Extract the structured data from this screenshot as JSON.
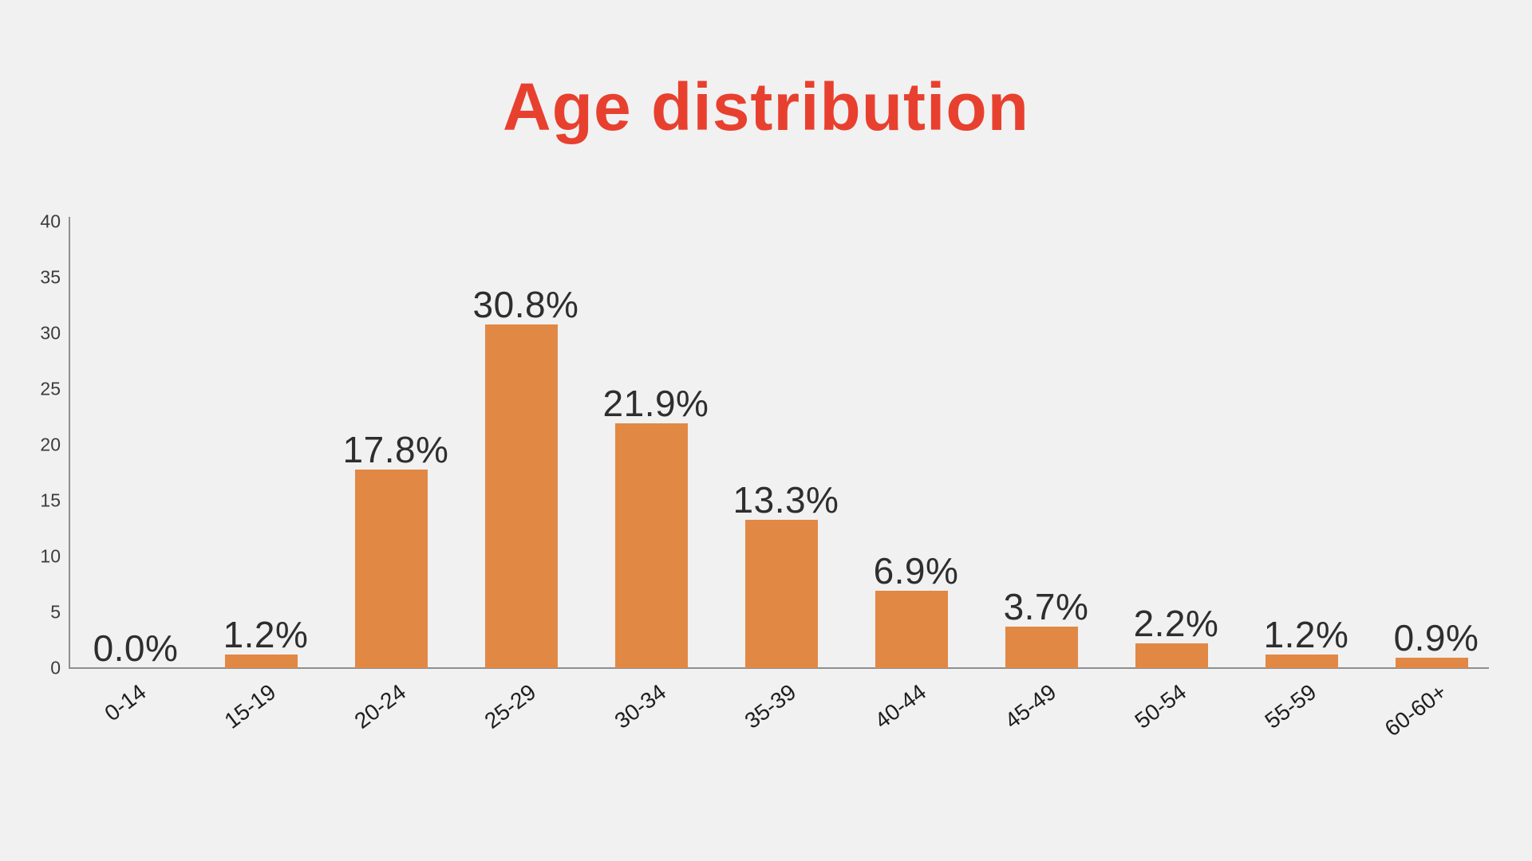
{
  "page": {
    "background": "#F1F1F1"
  },
  "chart_data": {
    "type": "bar",
    "title": "Age distribution",
    "categories": [
      "0-14",
      "15-19",
      "20-24",
      "25-29",
      "30-34",
      "35-39",
      "40-44",
      "45-49",
      "50-54",
      "55-59",
      "60-60+"
    ],
    "values": [
      0.0,
      1.2,
      17.8,
      30.8,
      21.9,
      13.3,
      6.9,
      3.7,
      2.2,
      1.2,
      0.9
    ],
    "value_labels": [
      "0.0%",
      "1.2%",
      "17.8%",
      "30.8%",
      "21.9%",
      "13.3%",
      "6.9%",
      "3.7%",
      "2.2%",
      "1.2%",
      "0.9%"
    ],
    "xlabel": "",
    "ylabel": "",
    "ylim": [
      0,
      40
    ],
    "yticks": [
      0,
      5,
      10,
      15,
      20,
      25,
      30,
      35,
      40
    ],
    "grid": false,
    "legend": false,
    "colors": {
      "bar": "#E28845",
      "title": "#E8402F",
      "value_label": "#2E2E2E",
      "axis_line": "#8F8F8F",
      "y_tick_label": "#3C3C3C",
      "x_tick_label": "#1E1E1E",
      "background": "#F1F1F1"
    }
  }
}
